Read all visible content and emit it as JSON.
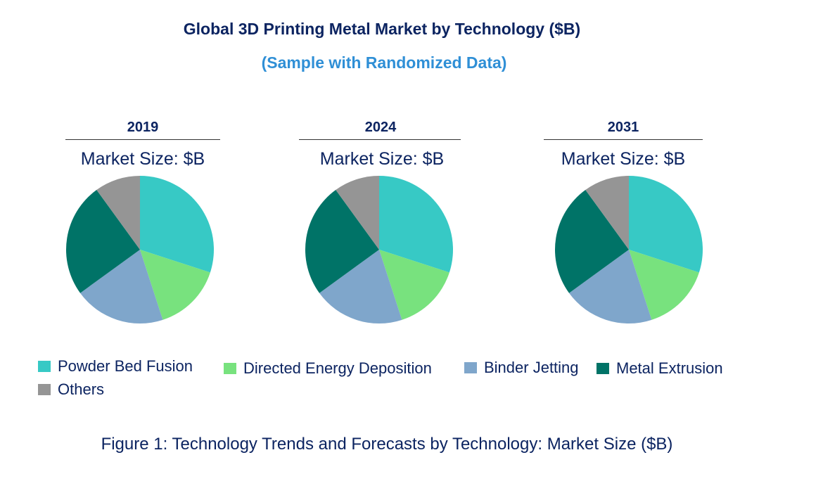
{
  "title": "Global 3D Printing Metal Market by Technology ($B)",
  "subtitle": "(Sample with Randomized Data)",
  "caption": "Figure 1: Technology Trends and Forecasts by Technology: Market Size ($B)",
  "chart_data": [
    {
      "type": "pie",
      "title": "2019",
      "subtitle": "Market Size: $B",
      "labels": [
        "Powder Bed Fusion",
        "Directed Energy Deposition",
        "Binder Jetting",
        "Metal Extrusion",
        "Others"
      ],
      "values": [
        30,
        15,
        20,
        25,
        10
      ],
      "colors": [
        "#37c9c5",
        "#78e27e",
        "#7fa6cb",
        "#007367",
        "#959595"
      ]
    },
    {
      "type": "pie",
      "title": "2024",
      "subtitle": "Market Size: $B",
      "labels": [
        "Powder Bed Fusion",
        "Directed Energy Deposition",
        "Binder Jetting",
        "Metal Extrusion",
        "Others"
      ],
      "values": [
        30,
        15,
        20,
        25,
        10
      ],
      "colors": [
        "#37c9c5",
        "#78e27e",
        "#7fa6cb",
        "#007367",
        "#959595"
      ]
    },
    {
      "type": "pie",
      "title": "2031",
      "subtitle": "Market Size: $B",
      "labels": [
        "Powder Bed Fusion",
        "Directed Energy Deposition",
        "Binder Jetting",
        "Metal Extrusion",
        "Others"
      ],
      "values": [
        30,
        15,
        20,
        25,
        10
      ],
      "colors": [
        "#37c9c5",
        "#78e27e",
        "#7fa6cb",
        "#007367",
        "#959595"
      ]
    }
  ],
  "legend": [
    {
      "label": "Powder Bed Fusion",
      "color": "#37c9c5"
    },
    {
      "label": "Directed Energy Deposition",
      "color": "#78e27e"
    },
    {
      "label": "Binder Jetting",
      "color": "#7fa6cb"
    },
    {
      "label": "Metal Extrusion",
      "color": "#007367"
    },
    {
      "label": "Others",
      "color": "#959595"
    }
  ]
}
